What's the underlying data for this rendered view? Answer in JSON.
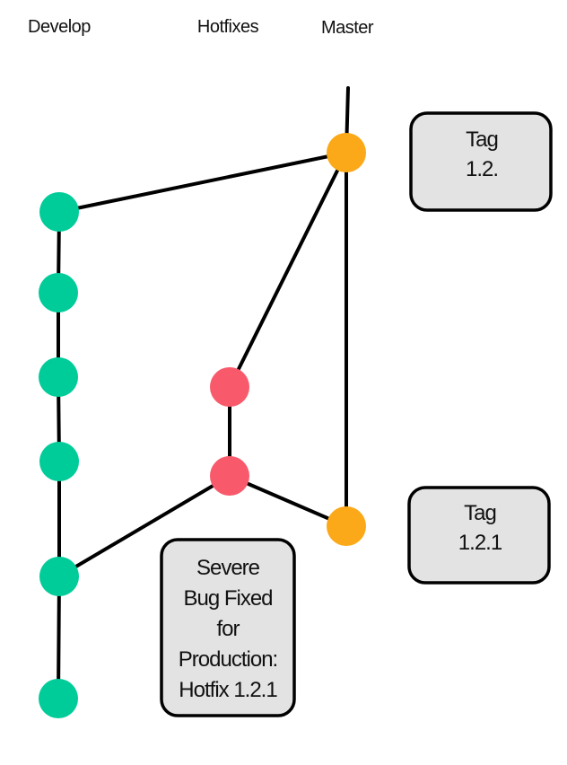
{
  "branches": {
    "develop": "Develop",
    "hotfixes": "Hotfixes",
    "master": "Master"
  },
  "tags": {
    "tag1": {
      "line1": "Tag",
      "line2": "1.2."
    },
    "tag2": {
      "line1": "Tag",
      "line2": "1.2.1"
    }
  },
  "note": {
    "lines": [
      "Severe",
      "Bug Fixed",
      "for",
      "Production:",
      "Hotfix 1.2.1"
    ]
  },
  "colors": {
    "develop": "#00cc99",
    "hotfix": "#f95a6b",
    "master": "#fba919"
  }
}
